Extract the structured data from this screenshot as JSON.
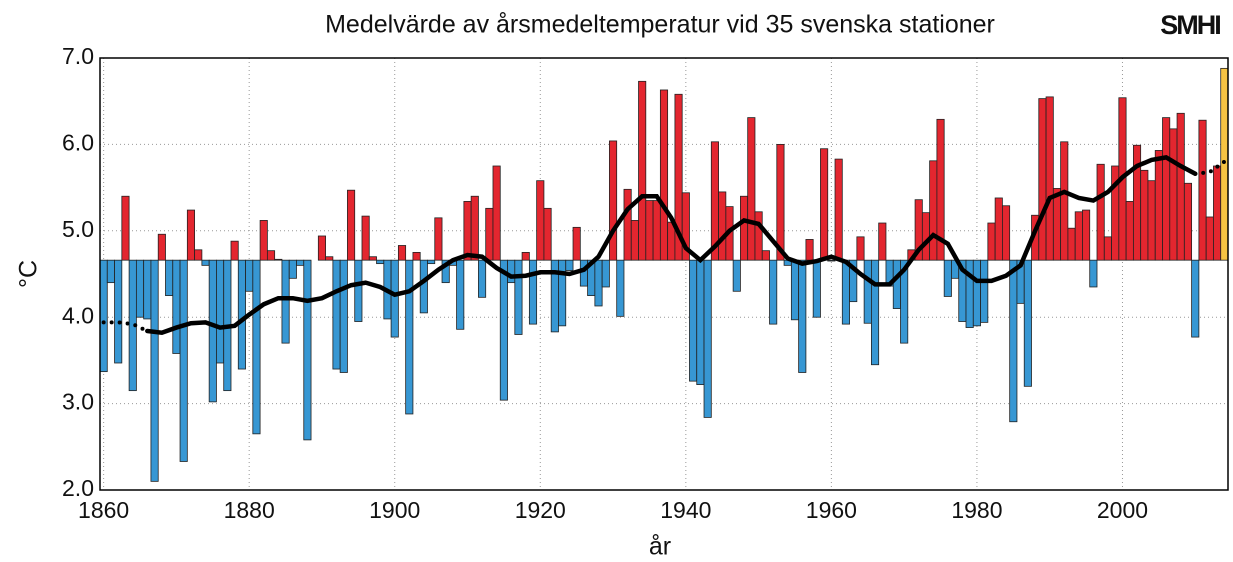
{
  "chart_data": {
    "type": "bar",
    "title": "Medelvärde av årsmedeltemperatur vid 35 svenska stationer",
    "logo": "SMHI",
    "x_label": "år",
    "y_label": "°C",
    "x": [
      1860,
      1861,
      1862,
      1863,
      1864,
      1865,
      1866,
      1867,
      1868,
      1869,
      1870,
      1871,
      1872,
      1873,
      1874,
      1875,
      1876,
      1877,
      1878,
      1879,
      1880,
      1881,
      1882,
      1883,
      1884,
      1885,
      1886,
      1887,
      1888,
      1889,
      1890,
      1891,
      1892,
      1893,
      1894,
      1895,
      1896,
      1897,
      1898,
      1899,
      1900,
      1901,
      1902,
      1903,
      1904,
      1905,
      1906,
      1907,
      1908,
      1909,
      1910,
      1911,
      1912,
      1913,
      1914,
      1915,
      1916,
      1917,
      1918,
      1919,
      1920,
      1921,
      1922,
      1923,
      1924,
      1925,
      1926,
      1927,
      1928,
      1929,
      1930,
      1931,
      1932,
      1933,
      1934,
      1935,
      1936,
      1937,
      1938,
      1939,
      1940,
      1941,
      1942,
      1943,
      1944,
      1945,
      1946,
      1947,
      1948,
      1949,
      1950,
      1951,
      1952,
      1953,
      1954,
      1955,
      1956,
      1957,
      1958,
      1959,
      1960,
      1961,
      1962,
      1963,
      1964,
      1965,
      1966,
      1967,
      1968,
      1969,
      1970,
      1971,
      1972,
      1973,
      1974,
      1975,
      1976,
      1977,
      1978,
      1979,
      1980,
      1981,
      1982,
      1983,
      1984,
      1985,
      1986,
      1987,
      1988,
      1989,
      1990,
      1991,
      1992,
      1993,
      1994,
      1995,
      1996,
      1997,
      1998,
      1999,
      2000,
      2001,
      2002,
      2003,
      2004,
      2005,
      2006,
      2007,
      2008,
      2009,
      2010,
      2011,
      2012,
      2013,
      2014
    ],
    "values": [
      3.37,
      4.4,
      3.47,
      5.4,
      3.15,
      4.0,
      3.98,
      2.1,
      4.96,
      4.25,
      3.58,
      2.33,
      5.24,
      4.78,
      4.6,
      3.02,
      3.47,
      3.15,
      4.88,
      3.4,
      4.3,
      2.65,
      5.12,
      4.77,
      4.67,
      3.7,
      4.45,
      4.6,
      2.58,
      4.66,
      4.94,
      4.7,
      3.4,
      3.36,
      5.47,
      3.95,
      5.17,
      4.7,
      4.62,
      3.98,
      3.77,
      4.83,
      2.88,
      4.75,
      4.05,
      4.62,
      5.15,
      4.4,
      4.6,
      3.86,
      5.34,
      5.4,
      4.23,
      5.26,
      5.75,
      3.04,
      4.4,
      3.8,
      4.75,
      3.92,
      5.58,
      5.26,
      3.83,
      3.9,
      4.54,
      5.04,
      4.36,
      4.25,
      4.13,
      4.35,
      6.04,
      4.01,
      5.48,
      5.12,
      6.73,
      5.35,
      5.35,
      6.63,
      5.1,
      6.58,
      5.44,
      3.26,
      3.22,
      2.84,
      6.03,
      5.45,
      5.28,
      4.3,
      5.4,
      6.31,
      5.22,
      4.77,
      3.92,
      6.0,
      4.6,
      3.97,
      3.36,
      4.9,
      4.0,
      5.95,
      4.65,
      5.83,
      3.92,
      4.18,
      4.93,
      3.93,
      3.45,
      5.09,
      4.36,
      4.1,
      3.7,
      4.78,
      5.36,
      5.21,
      5.81,
      6.29,
      4.24,
      4.45,
      3.95,
      3.88,
      3.9,
      3.94,
      5.09,
      5.38,
      5.29,
      2.79,
      4.16,
      3.2,
      5.18,
      6.53,
      6.55,
      5.49,
      6.03,
      5.03,
      5.22,
      5.24,
      4.35,
      5.77,
      4.93,
      5.75,
      6.54,
      5.34,
      5.99,
      5.7,
      5.58,
      5.93,
      6.31,
      6.18,
      6.36,
      5.55,
      3.77,
      6.28,
      5.16,
      5.75,
      6.88
    ],
    "reference": 4.66,
    "color_above": "#e3262f",
    "color_below": "#3797d3",
    "color_last": "#f6c343",
    "lines": [
      {
        "style": "dotted",
        "x": [
          1860,
          1862,
          1864,
          1866
        ],
        "values": [
          3.94,
          3.94,
          3.92,
          3.84
        ]
      },
      {
        "style": "solid",
        "x": [
          1866,
          1868,
          1870,
          1872,
          1874,
          1876,
          1878,
          1880,
          1882,
          1884,
          1886,
          1888,
          1890,
          1892,
          1894,
          1896,
          1898,
          1900,
          1902,
          1904,
          1906,
          1908,
          1910,
          1912,
          1914,
          1916,
          1918,
          1920,
          1922,
          1924,
          1926,
          1928,
          1930,
          1932,
          1934,
          1936,
          1938,
          1940,
          1942,
          1944,
          1946,
          1948,
          1950,
          1952,
          1954,
          1956,
          1958,
          1960,
          1962,
          1964,
          1966,
          1968,
          1970,
          1972,
          1974,
          1976,
          1978,
          1980,
          1982,
          1984,
          1986,
          1988,
          1990,
          1992,
          1994,
          1996,
          1998,
          2000,
          2002,
          2004,
          2006,
          2008,
          2010
        ],
        "values": [
          3.84,
          3.82,
          3.88,
          3.93,
          3.94,
          3.88,
          3.9,
          4.03,
          4.15,
          4.22,
          4.22,
          4.19,
          4.22,
          4.3,
          4.37,
          4.4,
          4.35,
          4.26,
          4.3,
          4.42,
          4.55,
          4.66,
          4.72,
          4.7,
          4.57,
          4.47,
          4.48,
          4.52,
          4.52,
          4.5,
          4.55,
          4.7,
          5.0,
          5.25,
          5.4,
          5.4,
          5.15,
          4.8,
          4.66,
          4.82,
          5.0,
          5.12,
          5.08,
          4.88,
          4.68,
          4.62,
          4.65,
          4.7,
          4.64,
          4.5,
          4.38,
          4.38,
          4.55,
          4.78,
          4.95,
          4.85,
          4.55,
          4.42,
          4.42,
          4.48,
          4.6,
          5.0,
          5.38,
          5.45,
          5.38,
          5.35,
          5.45,
          5.62,
          5.75,
          5.82,
          5.85,
          5.75,
          5.66
        ]
      },
      {
        "style": "dotted",
        "x": [
          2010,
          2012,
          2014
        ],
        "values": [
          5.66,
          5.68,
          5.8
        ]
      }
    ],
    "line_color": "#000000",
    "xlim": [
      1859.5,
      2014.5
    ],
    "ylim": [
      2.0,
      7.0
    ],
    "xticks": [
      1860,
      1880,
      1900,
      1920,
      1940,
      1960,
      1980,
      2000
    ],
    "yticks": [
      {
        "value": 2,
        "label": "2.0"
      },
      {
        "value": 3,
        "label": "3.0"
      },
      {
        "value": 4,
        "label": "4.0"
      },
      {
        "value": 5,
        "label": "5.0"
      },
      {
        "value": 6,
        "label": "6.0"
      },
      {
        "value": 7,
        "label": "7.0"
      }
    ],
    "grid": true
  }
}
